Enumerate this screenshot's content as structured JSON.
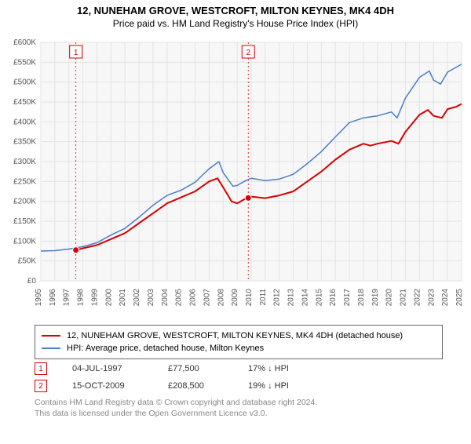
{
  "title": "12, NUNEHAM GROVE, WESTCROFT, MILTON KEYNES, MK4 4DH",
  "subtitle": "Price paid vs. HM Land Registry's House Price Index (HPI)",
  "chart": {
    "type": "line",
    "background_color": "#ffffff",
    "plot_bg": "#f7f7f7",
    "grid_color": "#e3e3e3",
    "axis_color": "#888888",
    "xlim": [
      1995,
      2025
    ],
    "ylim": [
      0,
      600000
    ],
    "ytick_step": 50000,
    "yticklabels": [
      "£0",
      "£50K",
      "£100K",
      "£150K",
      "£200K",
      "£250K",
      "£300K",
      "£350K",
      "£400K",
      "£450K",
      "£500K",
      "£550K",
      "£600K"
    ],
    "xticks": [
      1995,
      1996,
      1997,
      1998,
      1999,
      2000,
      2001,
      2002,
      2003,
      2004,
      2005,
      2006,
      2007,
      2008,
      2009,
      2010,
      2011,
      2012,
      2013,
      2014,
      2015,
      2016,
      2017,
      2018,
      2019,
      2020,
      2021,
      2022,
      2023,
      2024,
      2025
    ],
    "series": {
      "property": {
        "color": "#d80000",
        "width": 2,
        "points": [
          [
            1997.5,
            77500
          ],
          [
            1998,
            82000
          ],
          [
            1999,
            90000
          ],
          [
            2000,
            105000
          ],
          [
            2001,
            120000
          ],
          [
            2002,
            145000
          ],
          [
            2003,
            170000
          ],
          [
            2004,
            195000
          ],
          [
            2005,
            210000
          ],
          [
            2006,
            225000
          ],
          [
            2007,
            250000
          ],
          [
            2007.6,
            258000
          ],
          [
            2008,
            235000
          ],
          [
            2008.6,
            200000
          ],
          [
            2009,
            195000
          ],
          [
            2009.5,
            205000
          ],
          [
            2009.79,
            208500
          ],
          [
            2010,
            212000
          ],
          [
            2011,
            208000
          ],
          [
            2012,
            215000
          ],
          [
            2013,
            225000
          ],
          [
            2014,
            250000
          ],
          [
            2015,
            275000
          ],
          [
            2016,
            305000
          ],
          [
            2017,
            330000
          ],
          [
            2018,
            345000
          ],
          [
            2018.5,
            340000
          ],
          [
            2019,
            345000
          ],
          [
            2020,
            352000
          ],
          [
            2020.5,
            345000
          ],
          [
            2021,
            375000
          ],
          [
            2022,
            418000
          ],
          [
            2022.6,
            430000
          ],
          [
            2023,
            415000
          ],
          [
            2023.6,
            410000
          ],
          [
            2024,
            432000
          ],
          [
            2024.6,
            438000
          ],
          [
            2025,
            445000
          ]
        ]
      },
      "hpi": {
        "color": "#4a7ec9",
        "width": 1.5,
        "points": [
          [
            1995,
            75000
          ],
          [
            1996,
            76000
          ],
          [
            1997,
            80000
          ],
          [
            1998,
            86000
          ],
          [
            1999,
            96000
          ],
          [
            2000,
            115000
          ],
          [
            2001,
            132000
          ],
          [
            2002,
            160000
          ],
          [
            2003,
            190000
          ],
          [
            2004,
            215000
          ],
          [
            2005,
            228000
          ],
          [
            2006,
            248000
          ],
          [
            2007,
            282000
          ],
          [
            2007.7,
            300000
          ],
          [
            2008,
            272000
          ],
          [
            2008.7,
            238000
          ],
          [
            2009,
            240000
          ],
          [
            2009.6,
            252000
          ],
          [
            2010,
            258000
          ],
          [
            2011,
            252000
          ],
          [
            2012,
            256000
          ],
          [
            2013,
            268000
          ],
          [
            2014,
            295000
          ],
          [
            2015,
            325000
          ],
          [
            2016,
            362000
          ],
          [
            2017,
            398000
          ],
          [
            2018,
            410000
          ],
          [
            2019,
            415000
          ],
          [
            2020,
            425000
          ],
          [
            2020.4,
            410000
          ],
          [
            2021,
            460000
          ],
          [
            2022,
            512000
          ],
          [
            2022.7,
            528000
          ],
          [
            2023,
            505000
          ],
          [
            2023.5,
            495000
          ],
          [
            2024,
            525000
          ],
          [
            2025,
            545000
          ]
        ]
      }
    },
    "markers": [
      {
        "n": "1",
        "x": 1997.5,
        "y": 77500,
        "color": "#d80000"
      },
      {
        "n": "2",
        "x": 2009.79,
        "y": 208500,
        "color": "#d80000"
      }
    ]
  },
  "legend": {
    "property": "12, NUNEHAM GROVE, WESTCROFT, MILTON KEYNES, MK4 4DH (detached house)",
    "hpi": "HPI: Average price, detached house, Milton Keynes"
  },
  "salepoints": [
    {
      "n": "1",
      "date": "04-JUL-1997",
      "price": "£77,500",
      "delta": "17% ↓ HPI"
    },
    {
      "n": "2",
      "date": "15-OCT-2009",
      "price": "£208,500",
      "delta": "19% ↓ HPI"
    }
  ],
  "license_l1": "Contains HM Land Registry data © Crown copyright and database right 2024.",
  "license_l2": "This data is licensed under the Open Government Licence v3.0."
}
